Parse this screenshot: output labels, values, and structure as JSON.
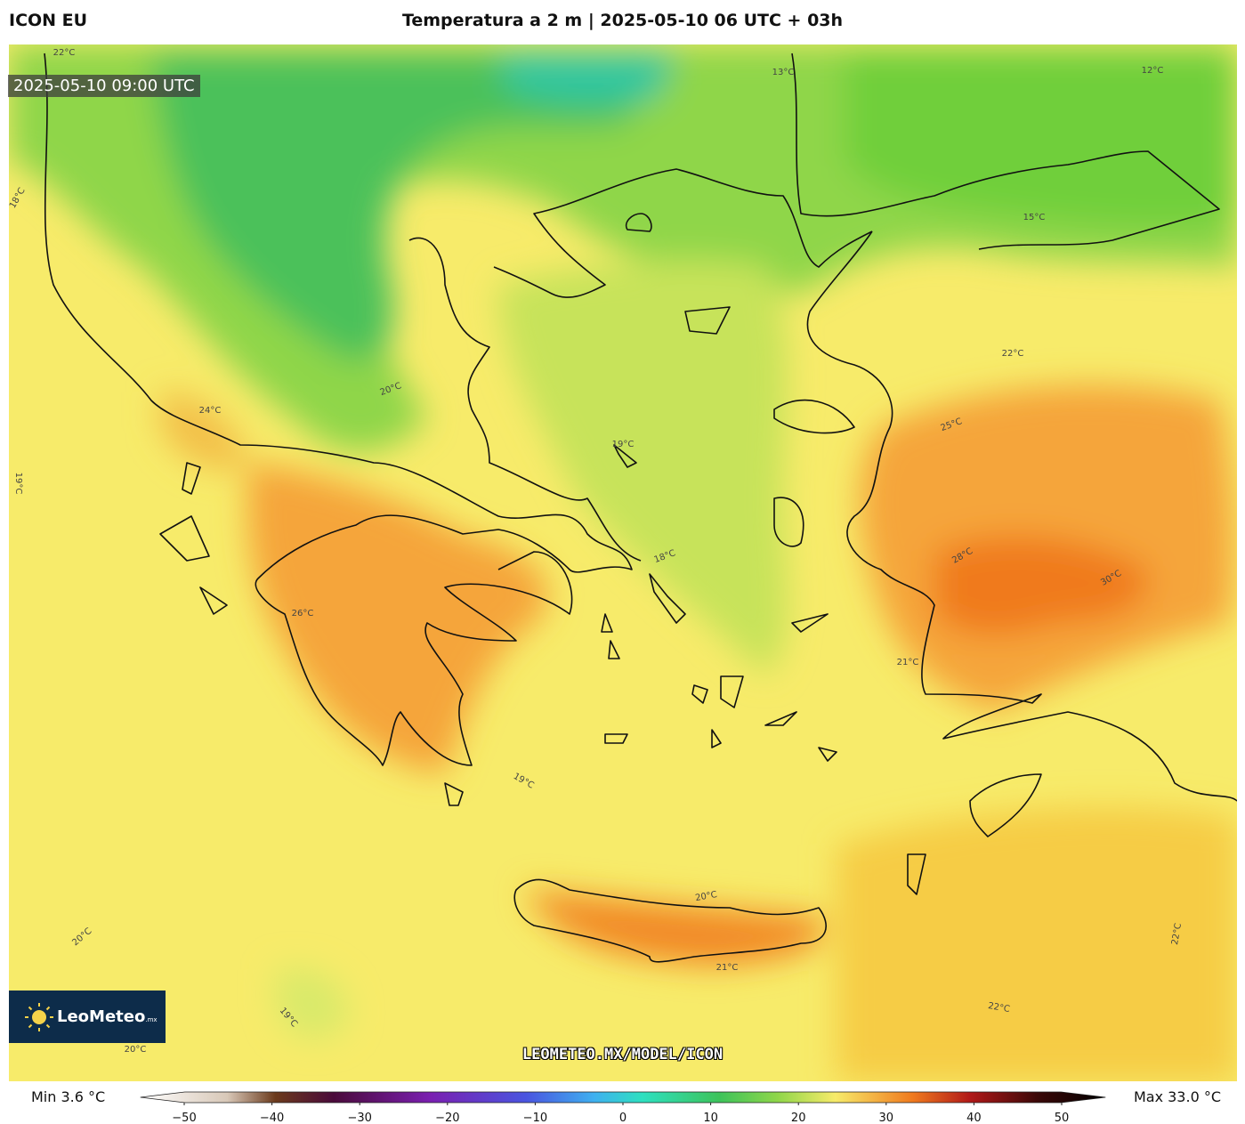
{
  "header": {
    "model": "ICON EU",
    "title": "Temperatura a 2 m | 2025-05-10 06 UTC + 03h"
  },
  "timestamp": "2025-05-10 09:00 UTC",
  "logo": {
    "name": "LeoMeteo",
    "suffix": ".mx"
  },
  "watermark": "LEOMETEO.MX/MODEL/ICON",
  "colorbar": {
    "min_label": "Min 3.6 °C",
    "max_label": "Max 33.0 °C",
    "lim": [
      -55,
      55
    ],
    "ticks": [
      {
        "value": -50,
        "label": "−50"
      },
      {
        "value": -40,
        "label": "−40"
      },
      {
        "value": -30,
        "label": "−30"
      },
      {
        "value": -20,
        "label": "−20"
      },
      {
        "value": -10,
        "label": "−10"
      },
      0,
      10,
      20,
      30,
      40,
      50
    ]
  },
  "contour_labels": [
    "22°C",
    "18°C",
    "19°C",
    "20°C",
    "19°C",
    "18°C",
    "15°C",
    "12°C",
    "13°C",
    "25°C",
    "28°C",
    "30°C",
    "22°C",
    "21°C",
    "22°C",
    "22°C",
    "20°C",
    "21°C",
    "19°C",
    "20°C",
    "19°C",
    "20°C",
    "26°C",
    "24°C"
  ]
}
